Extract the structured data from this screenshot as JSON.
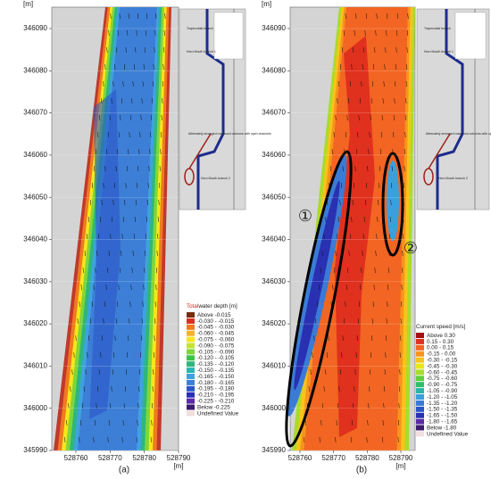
{
  "panels": [
    {
      "label": "(a)",
      "y_unit": "[m]",
      "x_unit": "[m]",
      "yticks": [
        346090,
        346080,
        346070,
        346060,
        346050,
        346040,
        346030,
        346020,
        346010,
        346000,
        345990
      ],
      "xticks": [
        528760,
        528770,
        528780,
        528790
      ],
      "inset": {
        "branch_top": "Trapezoidal branch",
        "branch_1": "Horn Mouth branch 1",
        "columns": "Alternately arranged rosewood columns with open channels",
        "branch_2": "Horn Mouth branch 2"
      },
      "legend": {
        "title_highlight": "Total",
        "title": "water depth [m]",
        "entries": [
          {
            "label": "Above -0.015",
            "color": "#7a2a10"
          },
          {
            "label": "-0.030 - -0.015",
            "color": "#d7301f"
          },
          {
            "label": "-0.045 - -0.030",
            "color": "#f07a20"
          },
          {
            "label": "-0.060 - -0.045",
            "color": "#f7b32b"
          },
          {
            "label": "-0.075 - -0.060",
            "color": "#f5e71a"
          },
          {
            "label": "-0.090 - -0.075",
            "color": "#c4e335"
          },
          {
            "label": "-0.105 - -0.090",
            "color": "#7fd53a"
          },
          {
            "label": "-0.120 - -0.105",
            "color": "#3dc24a"
          },
          {
            "label": "-0.135 - -0.120",
            "color": "#2eb67d"
          },
          {
            "label": "-0.150 - -0.135",
            "color": "#2ab7b0"
          },
          {
            "label": "-0.165 - -0.150",
            "color": "#3fa2df"
          },
          {
            "label": "-0.180 - -0.165",
            "color": "#3d7fd6"
          },
          {
            "label": "-0.195 - -0.180",
            "color": "#2b55c8"
          },
          {
            "label": "-0.210 - -0.195",
            "color": "#2a2fb5"
          },
          {
            "label": "-0.225 - -0.210",
            "color": "#5a2aa8"
          },
          {
            "label": "Below -0.225",
            "color": "#3b1b6e"
          },
          {
            "label": "Undefined Value",
            "color": "#f2dede"
          }
        ]
      }
    },
    {
      "label": "(b)",
      "y_unit": "[m]",
      "x_unit": "[m]",
      "yticks": [
        346090,
        346080,
        346070,
        346060,
        346050,
        346040,
        346030,
        346020,
        346010,
        346000,
        345990
      ],
      "xticks": [
        528760,
        528770,
        528780,
        528790
      ],
      "markers": [
        "①",
        "②"
      ],
      "inset": {
        "branch_top": "Trapezoidal branch",
        "branch_1": "Horn Mouth branch 1",
        "columns": "Alternately arranged rosewood columns with open channels",
        "branch_2": "Horn Mouth branch 2"
      },
      "legend": {
        "title": "Current speed [m/s]",
        "entries": [
          {
            "label": "Above  0.30",
            "color": "#a50f15"
          },
          {
            "label": "0.15 -  0.30",
            "color": "#e0301e"
          },
          {
            "label": "0.00 -  0.15",
            "color": "#f26522"
          },
          {
            "label": "-0.15 -  0.00",
            "color": "#f7941d"
          },
          {
            "label": "-0.30 - -0.15",
            "color": "#f9c31a"
          },
          {
            "label": "-0.45 - -0.30",
            "color": "#e6e619"
          },
          {
            "label": "-0.60 - -0.45",
            "color": "#a8dc2b"
          },
          {
            "label": "-0.75 - -0.60",
            "color": "#5fcf3a"
          },
          {
            "label": "-0.90 - -0.75",
            "color": "#2fbf6a"
          },
          {
            "label": "-1.05 - -0.90",
            "color": "#2ab5a8"
          },
          {
            "label": "-1.20 - -1.05",
            "color": "#3aa0dc"
          },
          {
            "label": "-1.35 - -1.20",
            "color": "#3a7bd5"
          },
          {
            "label": "-1.50 - -1.35",
            "color": "#2a55c6"
          },
          {
            "label": "-1.65 - -1.50",
            "color": "#2a30b2"
          },
          {
            "label": "-1.80 - -1.65",
            "color": "#5a2aa6"
          },
          {
            "label": "Below -1.80",
            "color": "#3b1b6e"
          },
          {
            "label": "Undefined Value",
            "color": "#f2dede"
          }
        ]
      }
    }
  ]
}
